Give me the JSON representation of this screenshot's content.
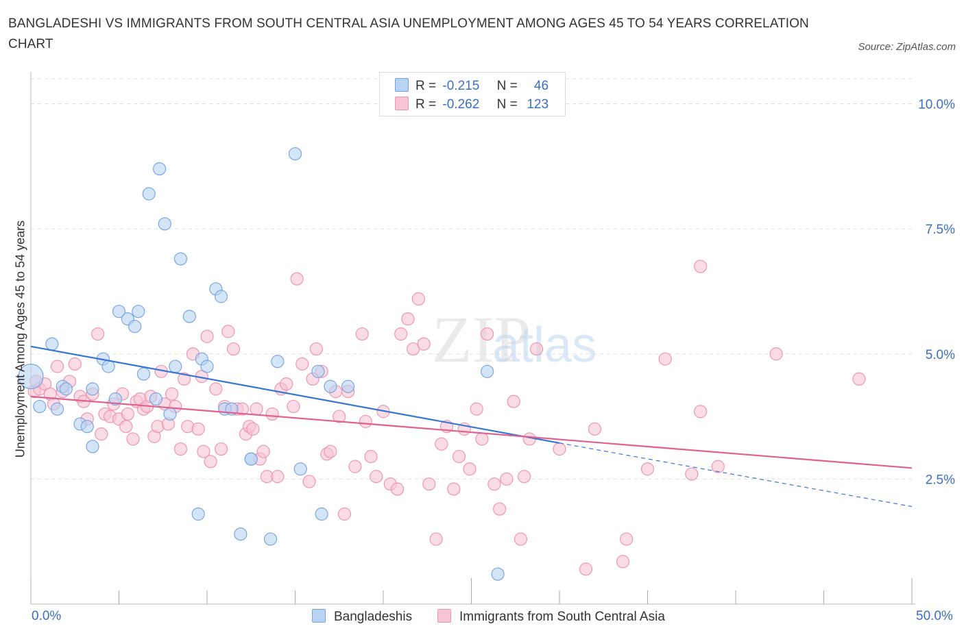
{
  "title": "BANGLADESHI VS IMMIGRANTS FROM SOUTH CENTRAL ASIA UNEMPLOYMENT AMONG AGES 45 TO 54 YEARS CORRELATION CHART",
  "source": "Source: ZipAtlas.com",
  "watermark": {
    "zip": "ZIP",
    "atlas": "atlas"
  },
  "legend": {
    "rows": [
      {
        "r_label": "R =",
        "r_value": "-0.215",
        "n_label": "N =",
        "n_value": "46"
      },
      {
        "r_label": "R =",
        "r_value": "-0.262",
        "n_label": "N =",
        "n_value": "123"
      }
    ]
  },
  "bottom_legend": {
    "series1": "Bangladeshis",
    "series2": "Immigrants from South Central Asia"
  },
  "colors": {
    "series1_fill": "#b9d3f3",
    "series1_stroke": "#7aa6e0",
    "series1_line": "#3576d4",
    "series2_fill": "#f7c4d4",
    "series2_stroke": "#ee95b2",
    "series2_line": "#e0608f",
    "axis_text": "#3a6fc4",
    "grid": "#dddddd"
  },
  "chart_data": {
    "type": "scatter",
    "title": "BANGLADESHI VS IMMIGRANTS FROM SOUTH CENTRAL ASIA UNEMPLOYMENT AMONG AGES 45 TO 54 YEARS CORRELATION CHART",
    "ylabel": "Unemployment Among Ages 45 to 54 years",
    "xlabel": "",
    "xlim": [
      0,
      50
    ],
    "ylim": [
      0,
      10.5
    ],
    "x_tick_labels": [
      "0.0%",
      "50.0%"
    ],
    "y_tick_labels": [
      "2.5%",
      "5.0%",
      "7.5%",
      "10.0%"
    ],
    "y_ticks": [
      2.5,
      5.0,
      7.5,
      10.0
    ],
    "grid": true,
    "legend_position": "top-center",
    "series": [
      {
        "name": "Bangladeshis",
        "r": -0.215,
        "n": 46,
        "trend": {
          "x0": 0,
          "y0": 5.15,
          "x1": 30,
          "y1": 3.22,
          "dashed_to_x": 50,
          "dashed_to_y": 1.95
        },
        "points": [
          [
            0,
            4.55
          ],
          [
            0.5,
            3.95
          ],
          [
            1.2,
            5.2
          ],
          [
            1.5,
            3.9
          ],
          [
            1.8,
            4.35
          ],
          [
            2.0,
            4.3
          ],
          [
            2.8,
            3.6
          ],
          [
            3.2,
            3.55
          ],
          [
            3.5,
            3.15
          ],
          [
            3.5,
            4.3
          ],
          [
            4.1,
            4.9
          ],
          [
            4.4,
            4.75
          ],
          [
            4.8,
            4.1
          ],
          [
            5.0,
            5.85
          ],
          [
            5.5,
            5.7
          ],
          [
            5.9,
            5.55
          ],
          [
            6.1,
            5.85
          ],
          [
            6.4,
            4.6
          ],
          [
            6.7,
            8.2
          ],
          [
            7.1,
            4.1
          ],
          [
            7.3,
            8.7
          ],
          [
            7.6,
            7.6
          ],
          [
            7.9,
            3.8
          ],
          [
            8.2,
            4.75
          ],
          [
            8.5,
            6.9
          ],
          [
            9.0,
            5.75
          ],
          [
            9.5,
            1.8
          ],
          [
            9.7,
            4.9
          ],
          [
            10.0,
            4.75
          ],
          [
            10.5,
            6.3
          ],
          [
            10.8,
            6.15
          ],
          [
            11.0,
            3.9
          ],
          [
            11.4,
            3.9
          ],
          [
            12.5,
            2.9
          ],
          [
            12.5,
            2.9
          ],
          [
            11.9,
            1.4
          ],
          [
            13.6,
            1.3
          ],
          [
            14.0,
            4.85
          ],
          [
            15.0,
            9.0
          ],
          [
            15.3,
            2.7
          ],
          [
            16.3,
            4.65
          ],
          [
            16.5,
            1.8
          ],
          [
            17.0,
            4.35
          ],
          [
            18.0,
            4.35
          ],
          [
            25.9,
            4.65
          ],
          [
            26.5,
            0.6
          ]
        ]
      },
      {
        "name": "Immigrants from South Central Asia",
        "r": -0.262,
        "n": 123,
        "trend": {
          "x0": 0,
          "y0": 4.15,
          "x1": 50,
          "y1": 2.72
        },
        "points": [
          [
            0.2,
            4.25
          ],
          [
            0.3,
            4.45
          ],
          [
            0.5,
            4.3
          ],
          [
            0.8,
            4.4
          ],
          [
            1.1,
            4.2
          ],
          [
            1.3,
            4.0
          ],
          [
            1.5,
            4.75
          ],
          [
            1.8,
            4.25
          ],
          [
            2.2,
            4.45
          ],
          [
            2.5,
            4.8
          ],
          [
            2.8,
            4.15
          ],
          [
            3.0,
            4.05
          ],
          [
            3.2,
            3.7
          ],
          [
            3.5,
            4.2
          ],
          [
            3.8,
            5.4
          ],
          [
            4.0,
            3.4
          ],
          [
            4.2,
            3.8
          ],
          [
            4.5,
            3.75
          ],
          [
            4.7,
            4.0
          ],
          [
            5.0,
            3.7
          ],
          [
            5.2,
            4.2
          ],
          [
            5.4,
            3.55
          ],
          [
            5.5,
            3.8
          ],
          [
            5.8,
            3.3
          ],
          [
            6.0,
            4.05
          ],
          [
            6.2,
            4.1
          ],
          [
            6.4,
            3.9
          ],
          [
            6.6,
            3.95
          ],
          [
            6.8,
            4.15
          ],
          [
            7.0,
            3.35
          ],
          [
            7.2,
            3.55
          ],
          [
            7.4,
            4.65
          ],
          [
            7.6,
            4.0
          ],
          [
            7.8,
            3.6
          ],
          [
            8.0,
            4.2
          ],
          [
            8.2,
            3.95
          ],
          [
            8.5,
            3.1
          ],
          [
            8.7,
            4.5
          ],
          [
            8.9,
            3.55
          ],
          [
            9.2,
            5.0
          ],
          [
            9.5,
            3.5
          ],
          [
            9.7,
            4.55
          ],
          [
            9.8,
            3.05
          ],
          [
            10.0,
            5.35
          ],
          [
            10.2,
            2.85
          ],
          [
            10.5,
            4.3
          ],
          [
            10.8,
            3.1
          ],
          [
            11.0,
            3.95
          ],
          [
            11.2,
            5.45
          ],
          [
            11.5,
            5.1
          ],
          [
            11.7,
            3.9
          ],
          [
            12.0,
            3.9
          ],
          [
            12.2,
            3.4
          ],
          [
            12.4,
            3.55
          ],
          [
            12.6,
            3.5
          ],
          [
            12.8,
            3.9
          ],
          [
            13.0,
            2.9
          ],
          [
            13.2,
            3.05
          ],
          [
            13.4,
            2.55
          ],
          [
            13.7,
            3.8
          ],
          [
            14.0,
            2.55
          ],
          [
            14.2,
            4.3
          ],
          [
            14.5,
            4.4
          ],
          [
            14.9,
            3.95
          ],
          [
            15.1,
            6.5
          ],
          [
            15.4,
            4.8
          ],
          [
            15.8,
            2.45
          ],
          [
            16.0,
            4.5
          ],
          [
            16.2,
            5.1
          ],
          [
            16.5,
            4.65
          ],
          [
            16.8,
            3.0
          ],
          [
            17.0,
            3.05
          ],
          [
            17.3,
            4.25
          ],
          [
            17.5,
            3.75
          ],
          [
            17.8,
            1.8
          ],
          [
            18.0,
            4.25
          ],
          [
            18.4,
            2.75
          ],
          [
            18.8,
            5.4
          ],
          [
            19.0,
            3.65
          ],
          [
            19.3,
            2.95
          ],
          [
            19.6,
            2.55
          ],
          [
            20.0,
            3.85
          ],
          [
            20.4,
            2.4
          ],
          [
            20.8,
            2.3
          ],
          [
            21.0,
            5.4
          ],
          [
            21.4,
            5.7
          ],
          [
            21.7,
            5.1
          ],
          [
            22.0,
            6.1
          ],
          [
            22.3,
            5.2
          ],
          [
            22.6,
            2.4
          ],
          [
            23.0,
            1.3
          ],
          [
            23.3,
            3.2
          ],
          [
            23.6,
            3.55
          ],
          [
            24.0,
            2.3
          ],
          [
            24.3,
            2.95
          ],
          [
            24.6,
            3.5
          ],
          [
            24.9,
            2.7
          ],
          [
            25.3,
            3.9
          ],
          [
            25.6,
            3.3
          ],
          [
            25.9,
            5.4
          ],
          [
            26.3,
            2.4
          ],
          [
            26.6,
            1.9
          ],
          [
            27.0,
            2.5
          ],
          [
            27.4,
            4.05
          ],
          [
            27.8,
            1.3
          ],
          [
            28.0,
            2.55
          ],
          [
            28.3,
            3.3
          ],
          [
            28.7,
            5.1
          ],
          [
            30.0,
            3.1
          ],
          [
            31.5,
            0.7
          ],
          [
            32.0,
            3.5
          ],
          [
            33.6,
            0.85
          ],
          [
            33.8,
            1.3
          ],
          [
            35.0,
            2.7
          ],
          [
            36.0,
            4.9
          ],
          [
            37.5,
            2.6
          ],
          [
            38.0,
            6.75
          ],
          [
            38.0,
            3.85
          ],
          [
            39.0,
            2.75
          ],
          [
            42.3,
            5.0
          ],
          [
            47.0,
            4.5
          ]
        ]
      }
    ]
  }
}
